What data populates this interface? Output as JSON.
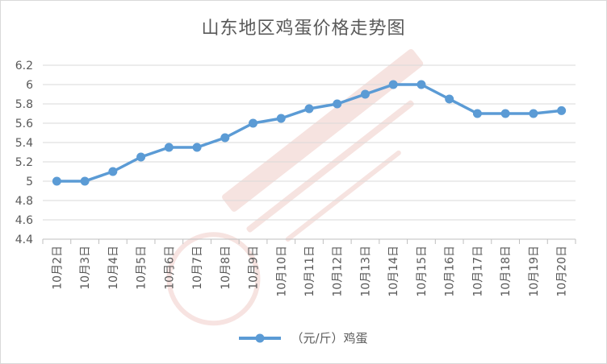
{
  "chart_data": {
    "type": "line",
    "title": "山东地区鸡蛋价格走势图",
    "categories": [
      "10月2日",
      "10月3日",
      "10月4日",
      "10月5日",
      "10月6日",
      "10月7日",
      "10月8日",
      "10月9日",
      "10月10日",
      "10月11日",
      "10月12日",
      "10月13日",
      "10月14日",
      "10月15日",
      "10月16日",
      "10月17日",
      "10月18日",
      "10月19日",
      "10月20日"
    ],
    "series": [
      {
        "name": "（元/斤）鸡蛋",
        "values": [
          5.0,
          5.0,
          5.1,
          5.25,
          5.35,
          5.35,
          5.45,
          5.6,
          5.65,
          5.75,
          5.8,
          5.9,
          6.0,
          6.0,
          5.85,
          5.7,
          5.7,
          5.7,
          5.73
        ]
      }
    ],
    "ylim": [
      4.4,
      6.2
    ],
    "yticks": [
      "4.4",
      "4.6",
      "4.8",
      "5",
      "5.2",
      "5.4",
      "5.6",
      "5.8",
      "6",
      "6.2"
    ],
    "grid": true,
    "legend": "bottom",
    "color": "#5b9bd5"
  }
}
